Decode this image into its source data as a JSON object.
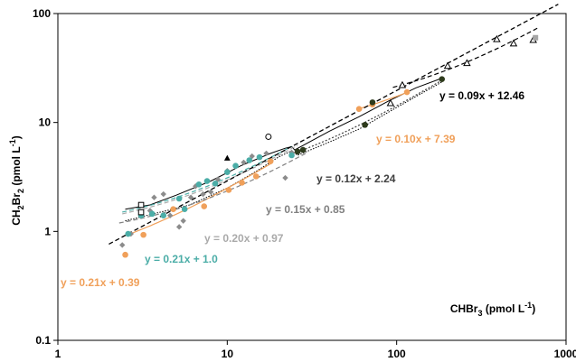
{
  "chart_data": {
    "type": "scatter",
    "x_scale": "log",
    "y_scale": "log",
    "xlim": [
      1,
      1000
    ],
    "ylim": [
      0.1,
      100
    ],
    "x_ticks": [
      1,
      10,
      100,
      1000
    ],
    "y_ticks": [
      0.1,
      1,
      10,
      100
    ],
    "x_tick_labels": [
      "1",
      "10",
      "100",
      "1000"
    ],
    "y_tick_labels": [
      "0.1",
      "1",
      "10",
      "100"
    ],
    "xlabel": "CHBr₃ (pmol L⁻¹)",
    "ylabel": "CH₂Br₂ (pmol L⁻¹)",
    "grid": false,
    "legend": "none",
    "series": [
      {
        "marker": "diamond",
        "color": "#8c8c8c",
        "points": [
          [
            2.4,
            0.75
          ],
          [
            2.7,
            0.95
          ],
          [
            3.5,
            1.55
          ],
          [
            3.7,
            2.05
          ],
          [
            4.2,
            2.2
          ],
          [
            4.6,
            1.4
          ],
          [
            5.2,
            1.1
          ],
          [
            5.5,
            1.25
          ],
          [
            6.1,
            2.05
          ],
          [
            6.5,
            2.6
          ],
          [
            7.2,
            2.2
          ],
          [
            8.0,
            2.3
          ],
          [
            8.8,
            3.0
          ],
          [
            10,
            3.6
          ],
          [
            12.5,
            4.3
          ],
          [
            14,
            4.9
          ],
          [
            17,
            5.2
          ],
          [
            22,
            3.1
          ],
          [
            24,
            5.3
          ]
        ]
      },
      {
        "marker": "circle",
        "color": "#4bada7",
        "points": [
          [
            2.6,
            0.95
          ],
          [
            3.1,
            1.4
          ],
          [
            3.6,
            1.45
          ],
          [
            4.2,
            1.4
          ],
          [
            5.2,
            2.0
          ],
          [
            5.6,
            1.6
          ],
          [
            6.8,
            2.7
          ],
          [
            7.6,
            2.9
          ],
          [
            8.5,
            2.75
          ],
          [
            10,
            3.5
          ],
          [
            11.2,
            4.0
          ],
          [
            13.5,
            4.5
          ],
          [
            15.5,
            4.8
          ],
          [
            24,
            5.0
          ]
        ]
      },
      {
        "marker": "circle",
        "color": "#f0a05a",
        "points": [
          [
            2.5,
            0.61
          ],
          [
            3.2,
            0.93
          ],
          [
            4.8,
            1.6
          ],
          [
            7.3,
            1.7
          ],
          [
            10.2,
            2.4
          ],
          [
            12.2,
            2.8
          ],
          [
            14.8,
            3.2
          ],
          [
            18,
            4.4
          ],
          [
            60,
            13.3
          ],
          [
            72,
            14.6
          ],
          [
            115,
            19
          ]
        ]
      },
      {
        "marker": "circle",
        "color": "#2e3b1c",
        "points": [
          [
            26,
            5.4
          ],
          [
            28,
            5.6
          ],
          [
            65,
            9.5
          ],
          [
            72,
            15.3
          ],
          [
            185,
            25
          ]
        ]
      },
      {
        "marker": "circle-open",
        "color": "#000000",
        "points": [
          [
            17.5,
            7.4
          ]
        ]
      },
      {
        "marker": "triangle",
        "color": "#000000",
        "points": [
          [
            10,
            4.7
          ]
        ]
      },
      {
        "marker": "square-open",
        "color": "#000000",
        "points": [
          [
            3.1,
            1.75
          ],
          [
            3.1,
            1.5
          ]
        ]
      },
      {
        "marker": "triangle-open",
        "color": "#000000",
        "points": [
          [
            92,
            15
          ],
          [
            108,
            22
          ],
          [
            200,
            33
          ],
          [
            260,
            35
          ],
          [
            390,
            58
          ],
          [
            490,
            53
          ],
          [
            640,
            57
          ]
        ]
      },
      {
        "marker": "square",
        "color": "#a6a6a6",
        "points": [
          [
            660,
            60
          ]
        ]
      }
    ],
    "fits": [
      {
        "label": "y = 0.21x + 0.39",
        "color": "#f0a05a",
        "dash": "solid",
        "x_range": [
          2.5,
          18
        ]
      },
      {
        "label": "y = 0.21x + 1.0",
        "color": "#4bada7",
        "dash": "dashed",
        "x_range": [
          2.4,
          24
        ]
      },
      {
        "label": "y = 0.20x + 0.97",
        "color": "#aaaaaa",
        "dash": "dashed",
        "x_range": [
          2.4,
          26
        ]
      },
      {
        "label": "y = 0.15x + 0.85",
        "color": "#808080",
        "dash": "dashed",
        "x_range": [
          2.3,
          30
        ]
      },
      {
        "label": "y = 0.12x + 2.24",
        "color": "#404040",
        "dash": "dotted",
        "x_range": [
          24,
          185
        ]
      },
      {
        "label": "y = 0.10x + 7.39",
        "color": "#f0a05a",
        "dash": "solid",
        "x_range": [
          60,
          115
        ]
      },
      {
        "label": "y = 0.09x + 12.46",
        "color": "#000000",
        "dash": "dashed",
        "x_range": [
          95,
          680
        ]
      },
      {
        "label": "",
        "color": "#000000",
        "dash": "dashed",
        "x_range": [
          2.0,
          900
        ],
        "power_fit": {
          "a": 0.43,
          "b": 0.83
        }
      }
    ],
    "confidence_band": {
      "color": "#000000",
      "upper": [
        [
          2.5,
          1.6
        ],
        [
          3.5,
          1.75
        ],
        [
          5,
          2.15
        ],
        [
          8,
          2.9
        ],
        [
          12,
          4.0
        ],
        [
          18,
          5.2
        ],
        [
          22,
          5.8
        ],
        [
          24,
          6.0
        ],
        [
          25,
          5.6
        ],
        [
          40,
          8.3
        ],
        [
          60,
          11.3
        ],
        [
          90,
          15.8
        ],
        [
          130,
          20.8
        ],
        [
          185,
          25.5
        ]
      ],
      "lower": [
        [
          2.5,
          1.25
        ],
        [
          4,
          1.5
        ],
        [
          6,
          1.75
        ],
        [
          10,
          2.5
        ],
        [
          15,
          3.6
        ],
        [
          20,
          4.8
        ],
        [
          24,
          5.5
        ],
        [
          26,
          5.0
        ],
        [
          40,
          6.6
        ],
        [
          60,
          8.7
        ],
        [
          90,
          12.5
        ],
        [
          130,
          17.3
        ],
        [
          185,
          23.5
        ]
      ]
    }
  }
}
